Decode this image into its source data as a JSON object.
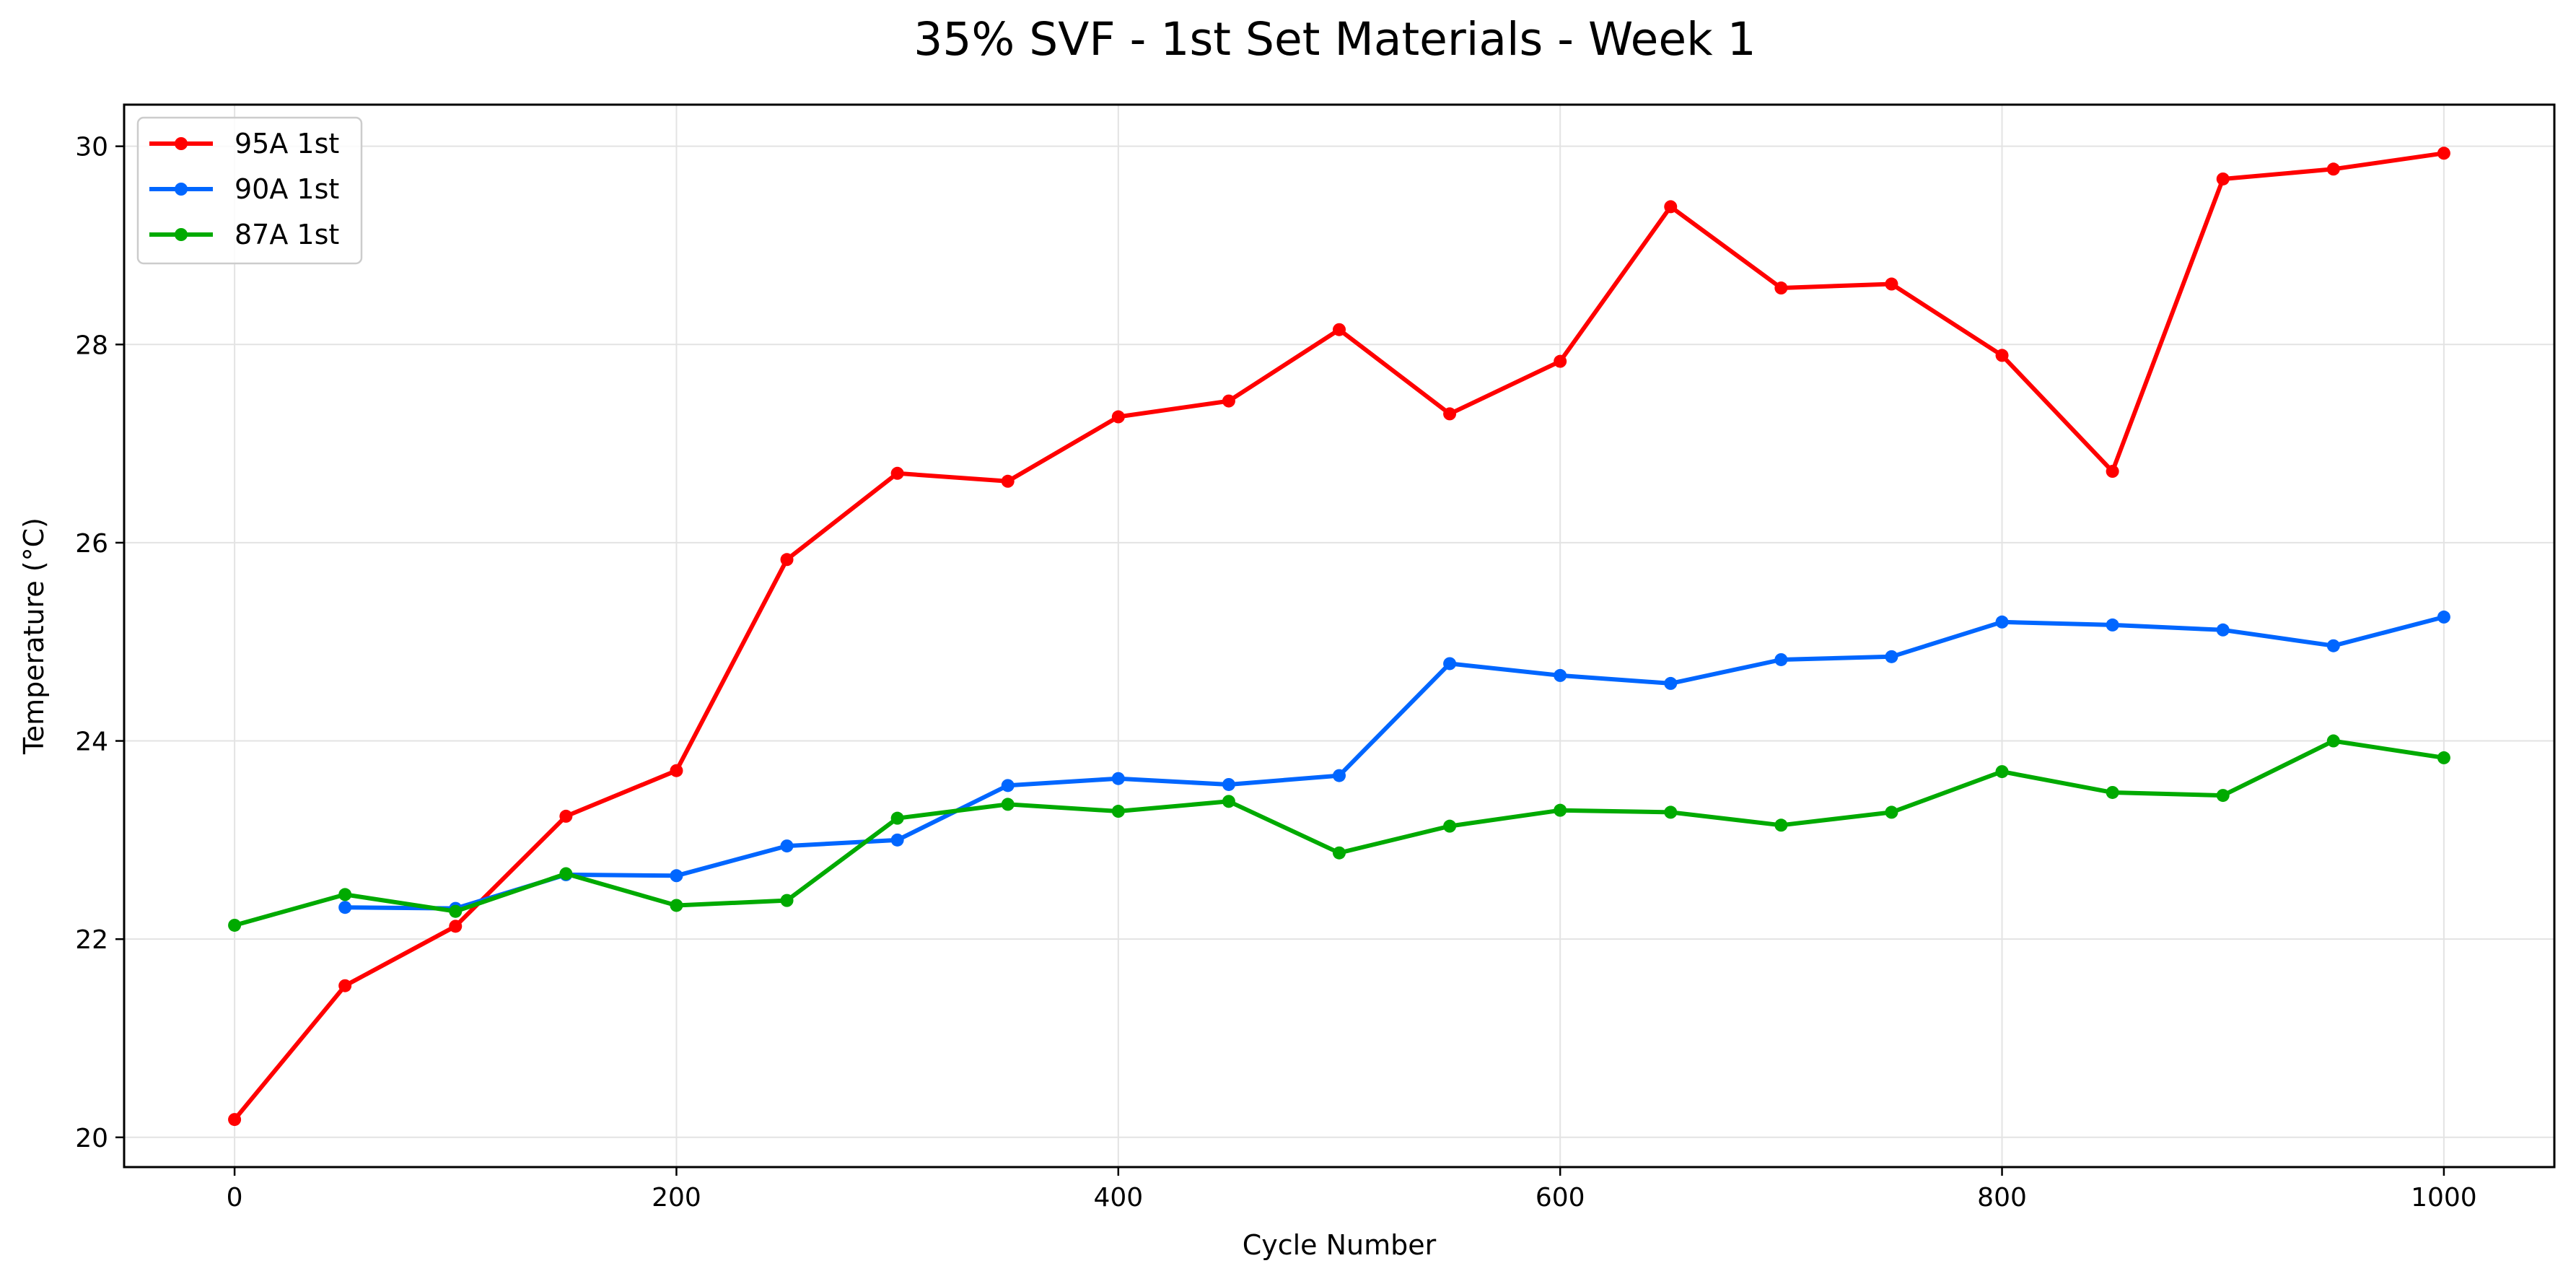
{
  "chart_data": {
    "type": "line",
    "title": "35% SVF - 1st Set Materials - Week 1",
    "xlabel": "Cycle Number",
    "ylabel": "Temperature (°C)",
    "xlim": [
      -50,
      1050
    ],
    "ylim": [
      19.7,
      30.42
    ],
    "xticks": [
      0,
      200,
      400,
      600,
      800,
      1000
    ],
    "xtick_labels": [
      "0",
      "200",
      "400",
      "600",
      "800",
      "1000"
    ],
    "yticks": [
      20,
      22,
      24,
      26,
      28,
      30
    ],
    "ytick_labels": [
      "20",
      "22",
      "24",
      "26",
      "28",
      "30"
    ],
    "grid": true,
    "legend_position": "top-left",
    "series": [
      {
        "name": "95A 1st",
        "color": "#ff0000",
        "x": [
          0,
          50,
          100,
          150,
          200,
          250,
          300,
          350,
          400,
          450,
          500,
          550,
          600,
          650,
          700,
          750,
          800,
          850,
          900,
          950,
          1000
        ],
        "y": [
          20.18,
          21.53,
          22.13,
          23.24,
          23.7,
          25.83,
          26.7,
          26.62,
          27.27,
          27.43,
          28.15,
          27.3,
          27.83,
          29.39,
          28.57,
          28.61,
          27.89,
          26.72,
          29.67,
          29.77,
          29.93
        ]
      },
      {
        "name": "90A 1st",
        "color": "#0066ff",
        "x": [
          50,
          100,
          150,
          200,
          250,
          300,
          350,
          400,
          450,
          500,
          550,
          600,
          650,
          700,
          750,
          800,
          850,
          900,
          950,
          1000
        ],
        "y": [
          22.32,
          22.31,
          22.65,
          22.64,
          22.94,
          23.0,
          23.55,
          23.62,
          23.56,
          23.65,
          24.78,
          24.66,
          24.58,
          24.82,
          24.85,
          25.2,
          25.17,
          25.12,
          24.96,
          25.25
        ]
      },
      {
        "name": "87A 1st",
        "color": "#00aa00",
        "x": [
          0,
          50,
          100,
          150,
          200,
          250,
          300,
          350,
          400,
          450,
          500,
          550,
          600,
          650,
          700,
          750,
          800,
          850,
          900,
          950,
          1000
        ],
        "y": [
          22.14,
          22.45,
          22.28,
          22.66,
          22.34,
          22.39,
          23.22,
          23.36,
          23.29,
          23.39,
          22.87,
          23.14,
          23.3,
          23.28,
          23.15,
          23.28,
          23.69,
          23.48,
          23.45,
          24.0,
          23.83
        ]
      }
    ]
  }
}
